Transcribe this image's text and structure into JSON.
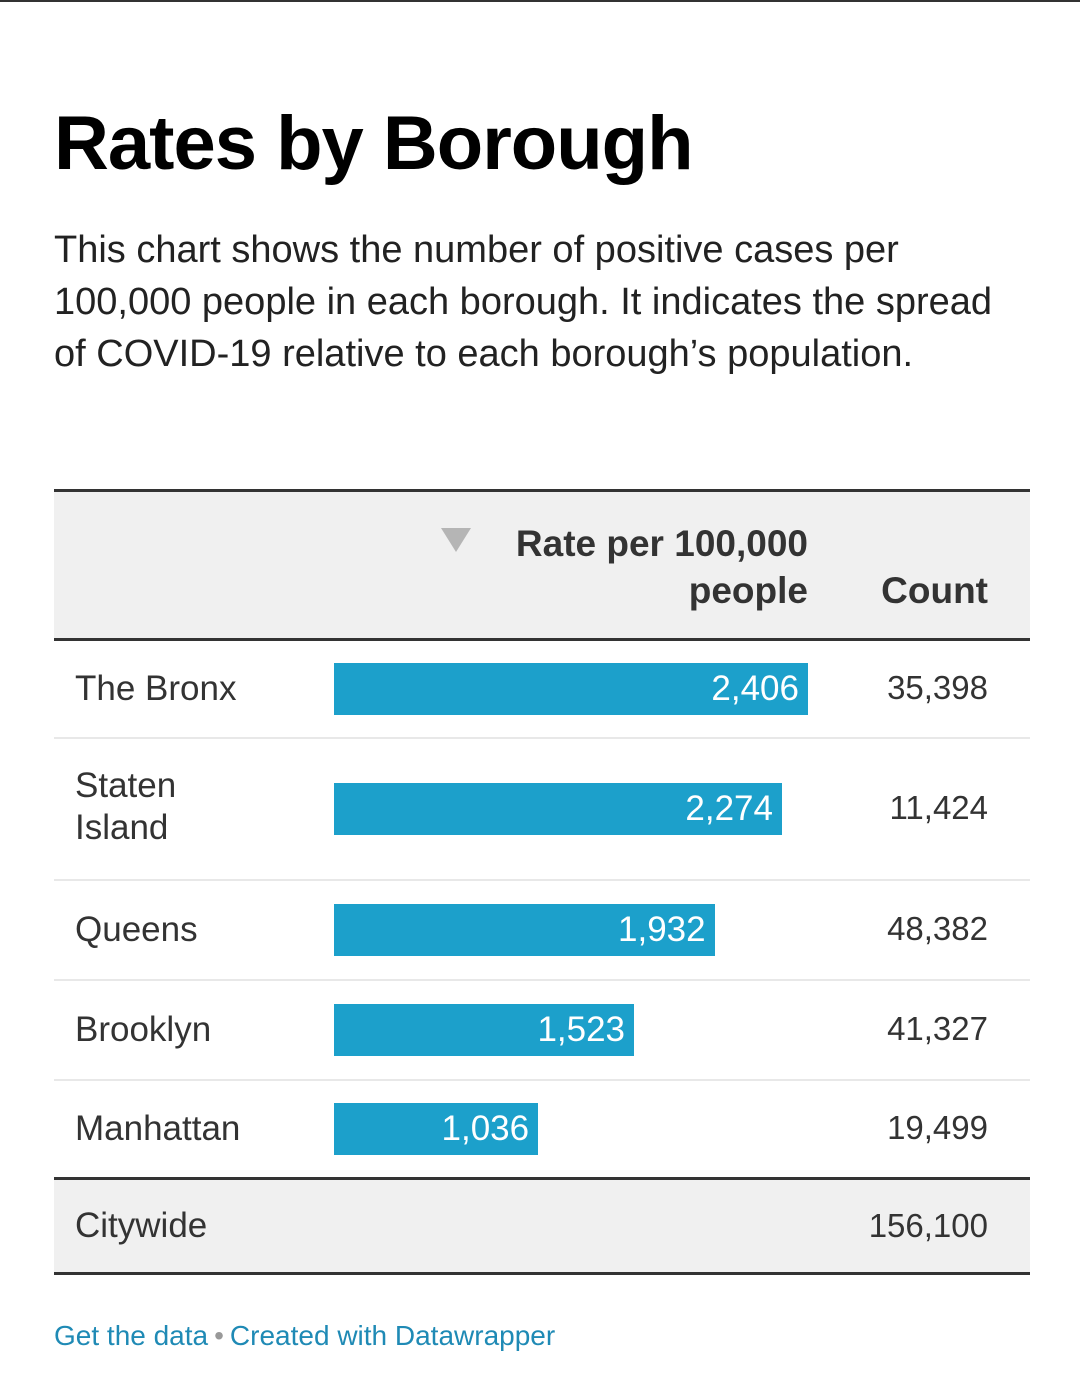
{
  "title": "Rates by Borough",
  "description": "This chart shows the number of positive cases per 100,000 people in each borough. It indicates the spread of COVID-19 relative to each borough’s population.",
  "table": {
    "columns": [
      "",
      "Rate per 100,000 people",
      "Count"
    ],
    "sort_column": "Rate per 100,000 people",
    "sort_direction": "descending",
    "rows": [
      {
        "label": "The Bronx",
        "rate": 2406,
        "rate_label": "2,406",
        "count": "35,398"
      },
      {
        "label": "Staten Island",
        "rate": 2274,
        "rate_label": "2,274",
        "count": "11,424"
      },
      {
        "label": "Queens",
        "rate": 1932,
        "rate_label": "1,932",
        "count": "48,382"
      },
      {
        "label": "Brooklyn",
        "rate": 1523,
        "rate_label": "1,523",
        "count": "41,327"
      },
      {
        "label": "Manhattan",
        "rate": 1036,
        "rate_label": "1,036",
        "count": "19,499"
      }
    ],
    "total": {
      "label": "Citywide",
      "count": "156,100"
    }
  },
  "footer": {
    "get_data": "Get the data",
    "separator": "•",
    "created_with": "Created with Datawrapper"
  },
  "colors": {
    "bar": "#1ca0cb",
    "link": "#1f8ab5"
  },
  "chart_data": {
    "type": "bar",
    "orientation": "horizontal",
    "title": "Rates by Borough",
    "categories": [
      "The Bronx",
      "Staten Island",
      "Queens",
      "Brooklyn",
      "Manhattan"
    ],
    "series": [
      {
        "name": "Rate per 100,000 people",
        "values": [
          2406,
          2274,
          1932,
          1523,
          1036
        ]
      },
      {
        "name": "Count",
        "values": [
          35398,
          11424,
          48382,
          41327,
          19499
        ]
      }
    ],
    "total": {
      "label": "Citywide",
      "count": 156100
    },
    "xlim": [
      0,
      2406
    ]
  }
}
